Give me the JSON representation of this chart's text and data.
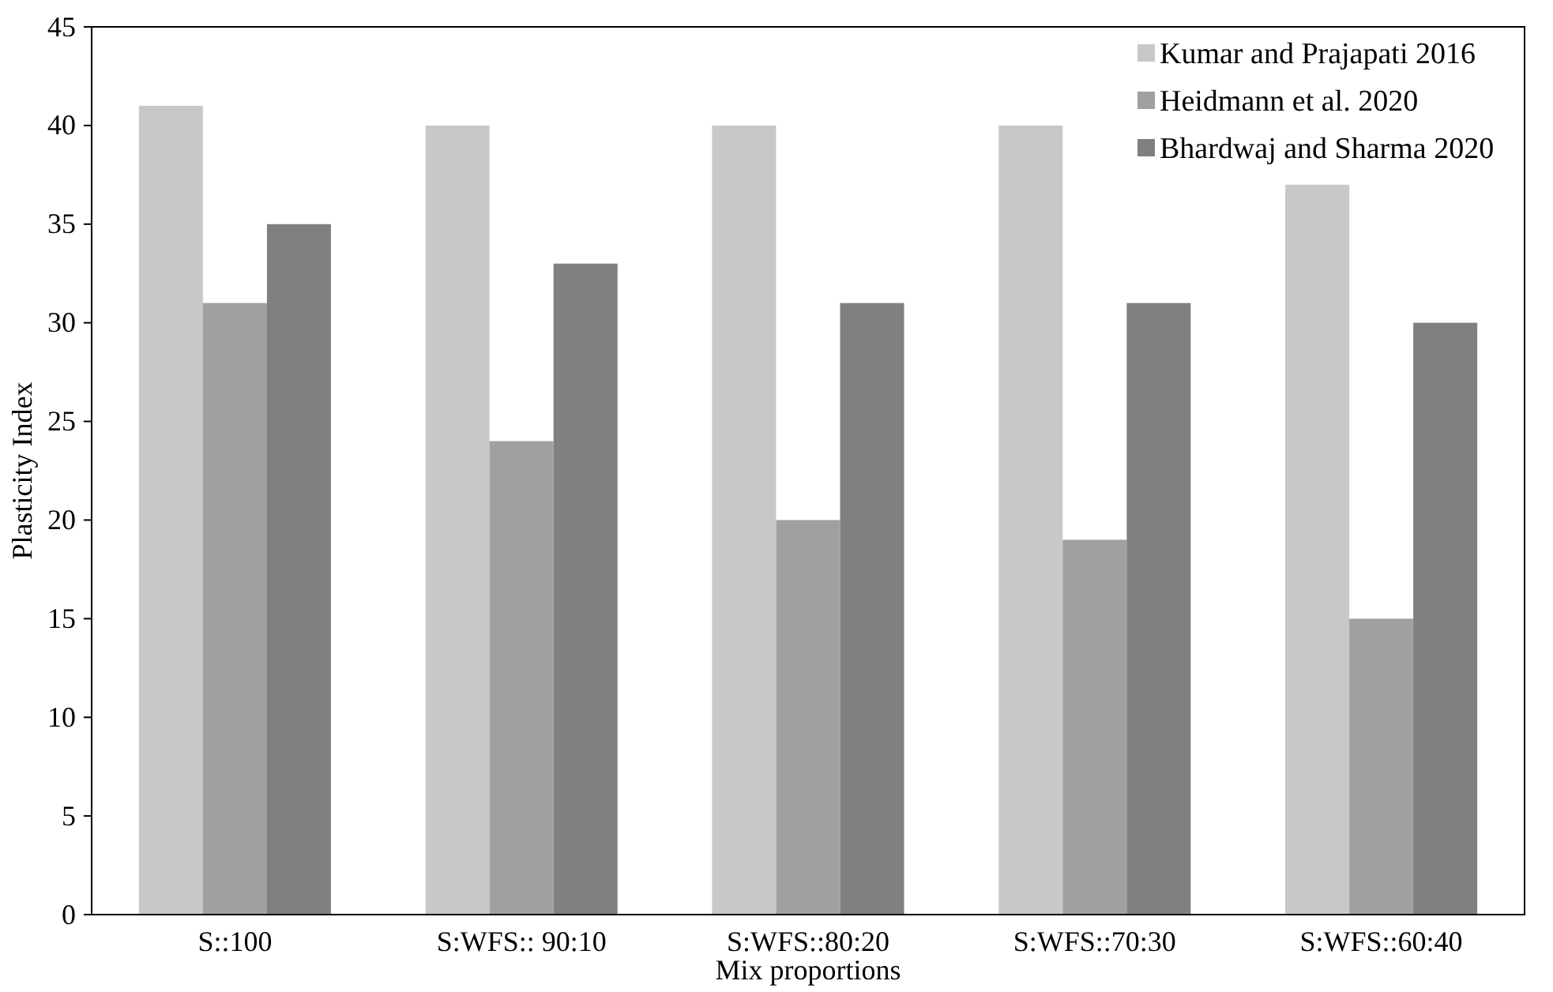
{
  "chart_data": {
    "type": "bar",
    "xlabel": "Mix proportions",
    "ylabel": "Plasticity Index",
    "categories": [
      "S::100",
      "S:WFS:: 90:10",
      "S:WFS::80:20",
      "S:WFS::70:30",
      "S:WFS::60:40"
    ],
    "series": [
      {
        "name": "Kumar and Prajapati 2016",
        "color": "#c8c8c8",
        "values": [
          41,
          40,
          40,
          40,
          37
        ]
      },
      {
        "name": "Heidmann et al. 2020",
        "color": "#a0a0a0",
        "values": [
          31,
          24,
          20,
          19,
          15
        ]
      },
      {
        "name": "Bhardwaj and Sharma 2020",
        "color": "#808080",
        "values": [
          35,
          33,
          31,
          31,
          30
        ]
      }
    ],
    "ylim": [
      0,
      45
    ],
    "yticks": [
      0,
      5,
      10,
      15,
      20,
      25,
      30,
      35,
      40,
      45
    ],
    "grid": false,
    "legend": "top right"
  }
}
